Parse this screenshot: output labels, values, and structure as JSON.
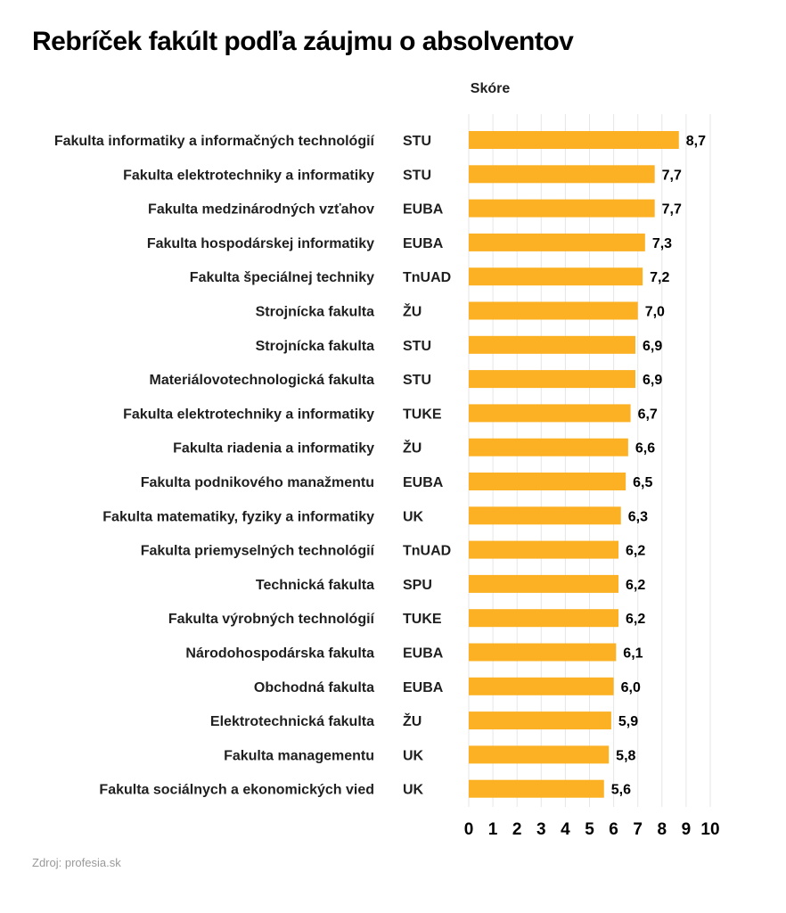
{
  "title": "Rebríček fakúlt podľa záujmu o absolventov",
  "source": "Zdroj: profesia.sk",
  "colors": {
    "bar": "#FBB123",
    "grid": "#e6e6e6",
    "text": "#1f1f1f"
  },
  "chart_data": {
    "type": "bar",
    "orientation": "horizontal",
    "title": "Rebríček fakúlt podľa záujmu o absolventov",
    "xlabel": "Skóre",
    "ylabel": "",
    "xlim": [
      0,
      10
    ],
    "xticks": [
      "0",
      "1",
      "2",
      "3",
      "4",
      "5",
      "6",
      "7",
      "8",
      "9",
      "10"
    ],
    "grid": true,
    "categories": [
      "Fakulta informatiky a informačných technológií",
      "Fakulta elektrotechniky a informatiky",
      "Fakulta medzinárodných vzťahov",
      "Fakulta hospodárskej informatiky",
      "Fakulta špeciálnej techniky",
      "Strojnícka fakulta",
      "Strojnícka fakulta",
      "Materiálovotechnologická fakulta",
      "Fakulta elektrotechniky a informatiky",
      "Fakulta riadenia a informatiky",
      "Fakulta podnikového manažmentu",
      "Fakulta matematiky, fyziky a informatiky",
      "Fakulta priemyselných technológií",
      "Technická fakulta",
      "Fakulta výrobných technológií",
      "Národohospodárska fakulta",
      "Obchodná fakulta",
      "Elektrotechnická fakulta",
      "Fakulta managementu",
      "Fakulta sociálnych a ekonomických vied"
    ],
    "universities": [
      "STU",
      "STU",
      "EUBA",
      "EUBA",
      "TnUAD",
      "ŽU",
      "STU",
      "STU",
      "TUKE",
      "ŽU",
      "EUBA",
      "UK",
      "TnUAD",
      "SPU",
      "TUKE",
      "EUBA",
      "EUBA",
      "ŽU",
      "UK",
      "UK"
    ],
    "values": [
      8.7,
      7.7,
      7.7,
      7.3,
      7.2,
      7.0,
      6.9,
      6.9,
      6.7,
      6.6,
      6.5,
      6.3,
      6.2,
      6.2,
      6.2,
      6.1,
      6.0,
      5.9,
      5.8,
      5.6
    ],
    "value_labels": [
      "8,7",
      "7,7",
      "7,7",
      "7,3",
      "7,2",
      "7,0",
      "6,9",
      "6,9",
      "6,7",
      "6,6",
      "6,5",
      "6,3",
      "6,2",
      "6,2",
      "6,2",
      "6,1",
      "6,0",
      "5,9",
      "5,8",
      "5,6"
    ]
  }
}
